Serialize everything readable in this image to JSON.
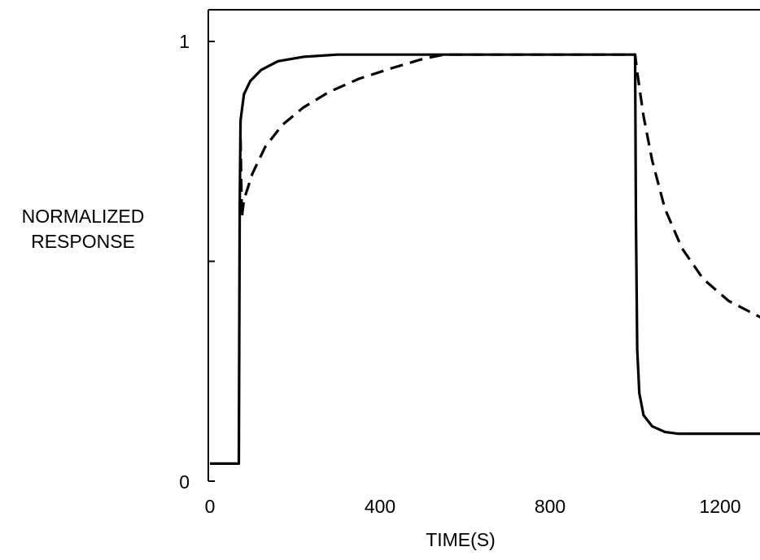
{
  "chart_data": {
    "type": "line",
    "title": "",
    "xlabel": "TIME(S)",
    "ylabel_lines": [
      "NORMALIZED",
      "RESPONSE"
    ],
    "xlim": [
      0,
      1300
    ],
    "ylim": [
      0,
      1
    ],
    "x_ticks": [
      0,
      400,
      800,
      1200
    ],
    "x_tick_labels": [
      "0",
      "400",
      "800",
      "1200"
    ],
    "y_ticks": [
      0,
      0.5,
      1
    ],
    "y_tick_labels": [
      "0",
      "",
      "1"
    ],
    "grid": false,
    "legend": "none",
    "series": [
      {
        "style": "solid",
        "color": "#000000",
        "points": [
          [
            0,
            0.04
          ],
          [
            68,
            0.04
          ],
          [
            70,
            0.62
          ],
          [
            72,
            0.82
          ],
          [
            80,
            0.88
          ],
          [
            95,
            0.91
          ],
          [
            120,
            0.935
          ],
          [
            160,
            0.955
          ],
          [
            220,
            0.965
          ],
          [
            300,
            0.97
          ],
          [
            1000,
            0.97
          ],
          [
            1002,
            0.6
          ],
          [
            1005,
            0.3
          ],
          [
            1010,
            0.2
          ],
          [
            1020,
            0.15
          ],
          [
            1040,
            0.125
          ],
          [
            1070,
            0.112
          ],
          [
            1100,
            0.108
          ],
          [
            1300,
            0.108
          ]
        ]
      },
      {
        "style": "dashed",
        "color": "#000000",
        "points": [
          [
            72,
            0.78
          ],
          [
            75,
            0.6
          ],
          [
            80,
            0.64
          ],
          [
            100,
            0.7
          ],
          [
            130,
            0.76
          ],
          [
            170,
            0.81
          ],
          [
            220,
            0.85
          ],
          [
            280,
            0.885
          ],
          [
            350,
            0.915
          ],
          [
            430,
            0.94
          ],
          [
            500,
            0.96
          ],
          [
            550,
            0.97
          ],
          [
            1000,
            0.97
          ],
          [
            1005,
            0.93
          ],
          [
            1020,
            0.83
          ],
          [
            1040,
            0.73
          ],
          [
            1070,
            0.62
          ],
          [
            1110,
            0.53
          ],
          [
            1160,
            0.46
          ],
          [
            1220,
            0.41
          ],
          [
            1280,
            0.38
          ],
          [
            1300,
            0.37
          ]
        ]
      }
    ]
  }
}
